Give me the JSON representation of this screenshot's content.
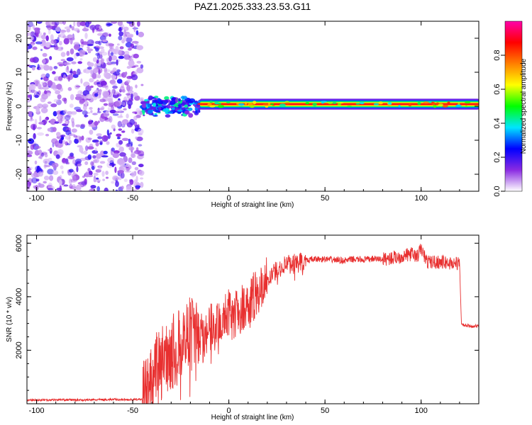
{
  "chart_data": [
    {
      "type": "heatmap",
      "title": "PAZ1.2025.333.23.53.G11",
      "xlabel": "Height of straight line (km)",
      "ylabel": "Frequency (Hz)",
      "xlim": [
        -105,
        130
      ],
      "ylim": [
        -25,
        25
      ],
      "xticks": [
        -100,
        -50,
        0,
        50,
        100
      ],
      "yticks": [
        -20,
        -10,
        0,
        10,
        20
      ],
      "xtick_labels": [
        "-100",
        "-50",
        "0",
        "50",
        "100"
      ],
      "ytick_labels": [
        "-20",
        "-10",
        "0",
        "10",
        "20"
      ],
      "colorbar": {
        "label": "Normalized spectral amplitude",
        "range": [
          0,
          1
        ],
        "ticks": [
          0.0,
          0.2,
          0.4,
          0.6,
          0.8
        ],
        "tick_labels": [
          "0.0",
          "0.2",
          "0.4",
          "0.6",
          "0.8"
        ],
        "colormap": [
          "#ffffff",
          "#8a2be2",
          "#0000ff",
          "#00e5ff",
          "#00ff00",
          "#ffff00",
          "#ff7f00",
          "#ff0000",
          "#ff00aa"
        ]
      },
      "regions": [
        {
          "name": "noise",
          "x_range": [
            -105,
            -45
          ],
          "freq_range": [
            -25,
            25
          ],
          "amplitude": 0.1
        },
        {
          "name": "transition",
          "x_range": [
            -45,
            -15
          ],
          "freq_range": [
            -3,
            3
          ],
          "amplitude": 0.3
        },
        {
          "name": "carrier-line",
          "x_range": [
            -15,
            130
          ],
          "freq_center": 0.6,
          "amplitude": 0.95
        }
      ]
    },
    {
      "type": "line",
      "xlabel": "Height of straight line (km)",
      "ylabel": "SNR (10 * v/v)",
      "xlim": [
        -105,
        130
      ],
      "ylim": [
        0,
        6300
      ],
      "xticks": [
        -100,
        -50,
        0,
        50,
        100
      ],
      "yticks": [
        2000,
        4000,
        6000
      ],
      "xtick_labels": [
        "-100",
        "-50",
        "0",
        "50",
        "100"
      ],
      "ytick_labels": [
        "2000",
        "4000",
        "6000"
      ],
      "color": "#e83030",
      "series": [
        {
          "name": "SNR",
          "x": [
            -105,
            -90,
            -75,
            -60,
            -50,
            -45,
            -42,
            -40,
            -37,
            -34,
            -31,
            -28,
            -25,
            -22,
            -20,
            -18,
            -16,
            -14,
            -12,
            -10,
            -8,
            -5,
            -2,
            0,
            3,
            6,
            10,
            15,
            20,
            25,
            30,
            35,
            40,
            45,
            50,
            55,
            60,
            65,
            70,
            75,
            80,
            85,
            90,
            95,
            98,
            100,
            103,
            106,
            110,
            115,
            119,
            120,
            121,
            125,
            130
          ],
          "y": [
            130,
            150,
            140,
            160,
            150,
            170,
            400,
            900,
            1400,
            1600,
            1900,
            2000,
            2200,
            2500,
            3000,
            2500,
            2300,
            2900,
            2500,
            2800,
            3000,
            3200,
            3300,
            3400,
            3300,
            3500,
            3800,
            4200,
            4700,
            5000,
            5200,
            5300,
            5350,
            5400,
            5400,
            5380,
            5350,
            5400,
            5380,
            5420,
            5400,
            5450,
            5500,
            5600,
            5500,
            5800,
            5300,
            5300,
            5300,
            5250,
            5250,
            5200,
            2950,
            2900,
            2900
          ]
        }
      ]
    }
  ]
}
